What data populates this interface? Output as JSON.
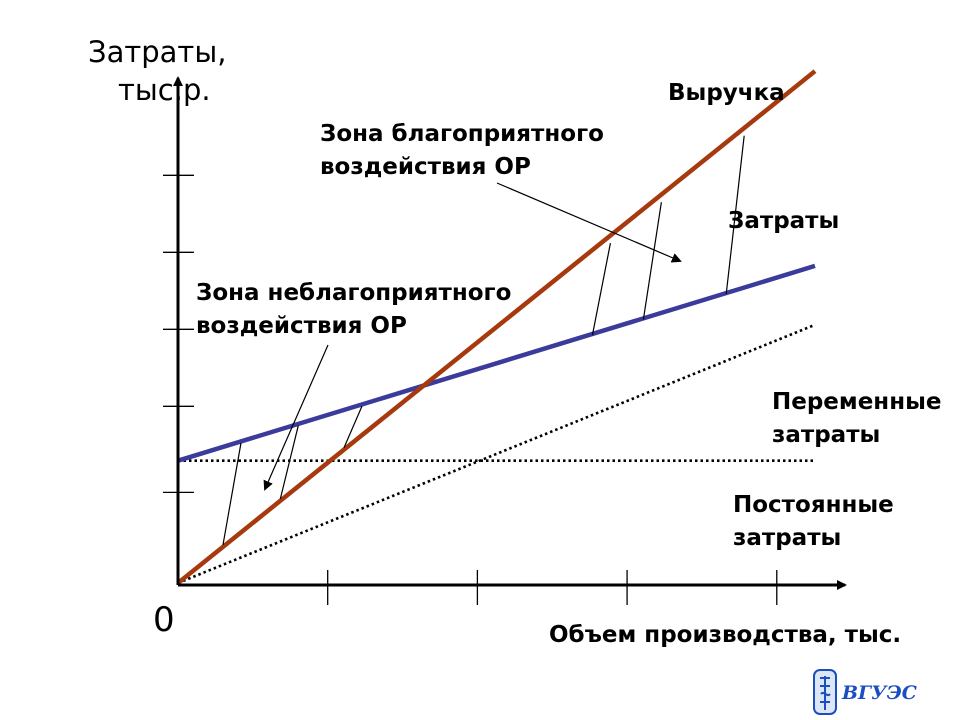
{
  "chart_data": {
    "type": "line",
    "ylabel_line1": "Затраты,",
    "ylabel_line2": "тыс.р.",
    "xlabel": "Объем производства, тыс.",
    "origin_label": "0",
    "xlim": [
      0,
      1
    ],
    "ylim": [
      0,
      1
    ],
    "x_ticks": [
      0.235,
      0.47,
      0.705,
      0.94
    ],
    "y_ticks": [
      0.2,
      0.39,
      0.56,
      0.73,
      0.9
    ],
    "series": [
      {
        "name": "Выручка",
        "style": "solid",
        "color": "#a63a0e",
        "x": [
          0,
          1
        ],
        "y": [
          0,
          1.13
        ]
      },
      {
        "name": "Затраты",
        "style": "solid",
        "color": "#3b3b9c",
        "x": [
          0,
          1
        ],
        "y": [
          0.27,
          0.7
        ]
      },
      {
        "name": "Переменные затраты",
        "style": "dotted",
        "color": "#000000",
        "x": [
          0,
          1
        ],
        "y": [
          0,
          0.57
        ]
      },
      {
        "name": "Постоянные затраты",
        "style": "dotted",
        "color": "#000000",
        "x": [
          0,
          1
        ],
        "y": [
          0.27,
          0.27
        ]
      }
    ],
    "annotations": {
      "revenue": "Выручка",
      "costs": "Затраты",
      "favorable_line1": "Зона благоприятного",
      "favorable_line2": "воздействия ОР",
      "unfavorable_line1": "Зона неблагоприятного",
      "unfavorable_line2": "воздействия ОР",
      "variable_line1": "Переменные",
      "variable_line2": "затраты",
      "fixed_line1": "Постоянные",
      "fixed_line2": "затраты"
    }
  },
  "logo": {
    "text": "ВГУЭС",
    "color": "#1a4fbf"
  }
}
